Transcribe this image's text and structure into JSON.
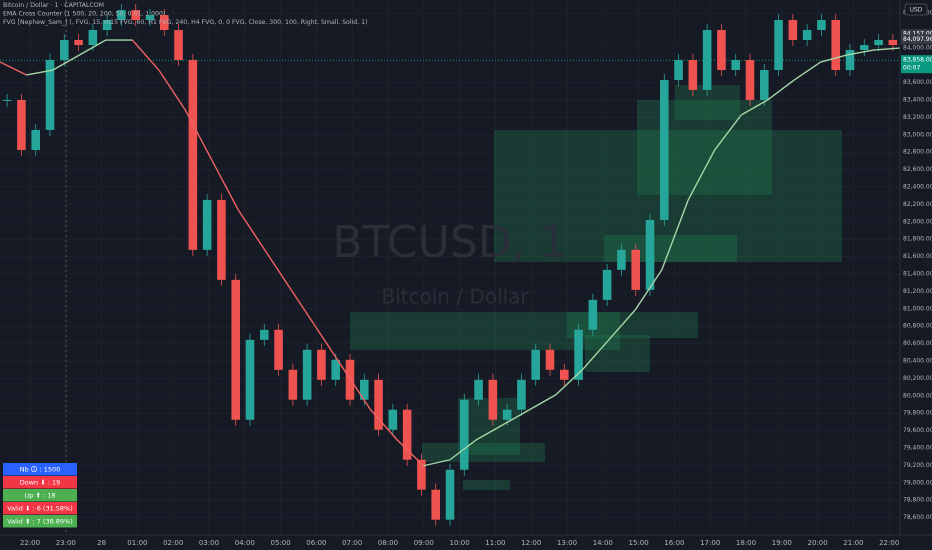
{
  "header": {
    "lines": [
      "Bitcoin / Dollar · 1 · CAPITALCOM",
      "EMA Cross Counter (1 500, 20, 200, 50, 0.01, 1 000)",
      "FVG [Nephew_Sam_] (, FVG, 15, m15 FVG, 60, H1 FVG, 240, H4 FVG, 0, 0 FVG, Close, 300, 100, Right, Small, Solid, 1)"
    ],
    "currency": "USD"
  },
  "watermark": {
    "symbol": "BTCUSD, 1",
    "name": "Bitcoin / Dollar"
  },
  "price_axis": {
    "ylim": [
      78400,
      84550
    ],
    "ticks": [
      {
        "value": 84400,
        "label": "84,400.00"
      },
      {
        "value": 84000,
        "label": "84,000.00"
      },
      {
        "value": 83600,
        "label": "83,600.00"
      },
      {
        "value": 83400,
        "label": "83,400.00"
      },
      {
        "value": 83200,
        "label": "83,200.00"
      },
      {
        "value": 83000,
        "label": "83,000.00"
      },
      {
        "value": 82800,
        "label": "82,800.00"
      },
      {
        "value": 82600,
        "label": "82,600.00"
      },
      {
        "value": 82400,
        "label": "82,400.00"
      },
      {
        "value": 82200,
        "label": "82,200.00"
      },
      {
        "value": 82000,
        "label": "82,000.00"
      },
      {
        "value": 81800,
        "label": "81,800.00"
      },
      {
        "value": 81600,
        "label": "81,600.00"
      },
      {
        "value": 81400,
        "label": "81,400.00"
      },
      {
        "value": 81200,
        "label": "81,200.00"
      },
      {
        "value": 81000,
        "label": "81,000.00"
      },
      {
        "value": 80800,
        "label": "80,800.00"
      },
      {
        "value": 80600,
        "label": "80,600.00"
      },
      {
        "value": 80400,
        "label": "80,400.00"
      },
      {
        "value": 80200,
        "label": "80,200.00"
      },
      {
        "value": 80000,
        "label": "80,000.00"
      },
      {
        "value": 79800,
        "label": "79,800.00"
      },
      {
        "value": 79600,
        "label": "79,600.00"
      },
      {
        "value": 79400,
        "label": "79,400.00"
      },
      {
        "value": 79200,
        "label": "79,200.00"
      },
      {
        "value": 79000,
        "label": "79,000.00"
      },
      {
        "value": 78800,
        "label": "78,800.00"
      },
      {
        "value": 78600,
        "label": "78,600.00"
      }
    ],
    "price_tags": [
      {
        "text": "84,157.00",
        "value": 84157
      },
      {
        "text": "84,097.96",
        "value": 84097.96
      },
      {
        "text": "83,858.00",
        "value": 83858,
        "sub": "00:07"
      }
    ]
  },
  "time_axis": {
    "labels": [
      "22:00",
      "23:00",
      "28",
      "01:00",
      "02:00",
      "03:00",
      "04:00",
      "05:00",
      "06:00",
      "07:00",
      "08:00",
      "09:00",
      "10:00",
      "11:00",
      "12:00",
      "13:00",
      "14:00",
      "15:00",
      "16:00",
      "17:00",
      "18:00",
      "19:00",
      "20:00",
      "21:00",
      "22:00"
    ]
  },
  "price": {
    "values": [
      83401,
      82826,
      83056,
      83860,
      84090,
      84032,
      84205,
      84320,
      84434,
      84320,
      84377,
      84205,
      83860,
      81678,
      82252,
      81333,
      79725,
      80644,
      80759,
      80299,
      79955,
      80529,
      80184,
      80414,
      79955,
      80184,
      79610,
      79840,
      79265,
      78921,
      78576,
      79150,
      79955,
      80184,
      79725,
      79840,
      80184,
      80529,
      80299,
      80184,
      80759,
      81103,
      81448,
      81678,
      81218,
      82022,
      83630,
      83860,
      83516,
      84205,
      83745,
      83860,
      83401,
      83745,
      84320,
      84090,
      84205,
      84320,
      83745,
      83975,
      84032,
      84090,
      84032
    ]
  },
  "ema": {
    "values": [
      83837,
      83688,
      83745,
      83918,
      84090,
      84090,
      83745,
      83286,
      82711,
      82137,
      81678,
      81218,
      80759,
      80299,
      79840,
      79495,
      79196,
      79265,
      79495,
      79667,
      79840,
      80012,
      80299,
      80644,
      80988,
      81448,
      82252,
      82826,
      83228,
      83401,
      83630,
      83837,
      83918,
      83975,
      83998
    ]
  },
  "stats": {
    "rows": [
      "Nb 🛈 : 1500",
      "Down ⬇ : 19",
      "Up ⬆ : 18",
      "Valid ⬇ : 6 (31.58%)",
      "Valid ⬆ : 7 (38.89%)"
    ]
  }
}
